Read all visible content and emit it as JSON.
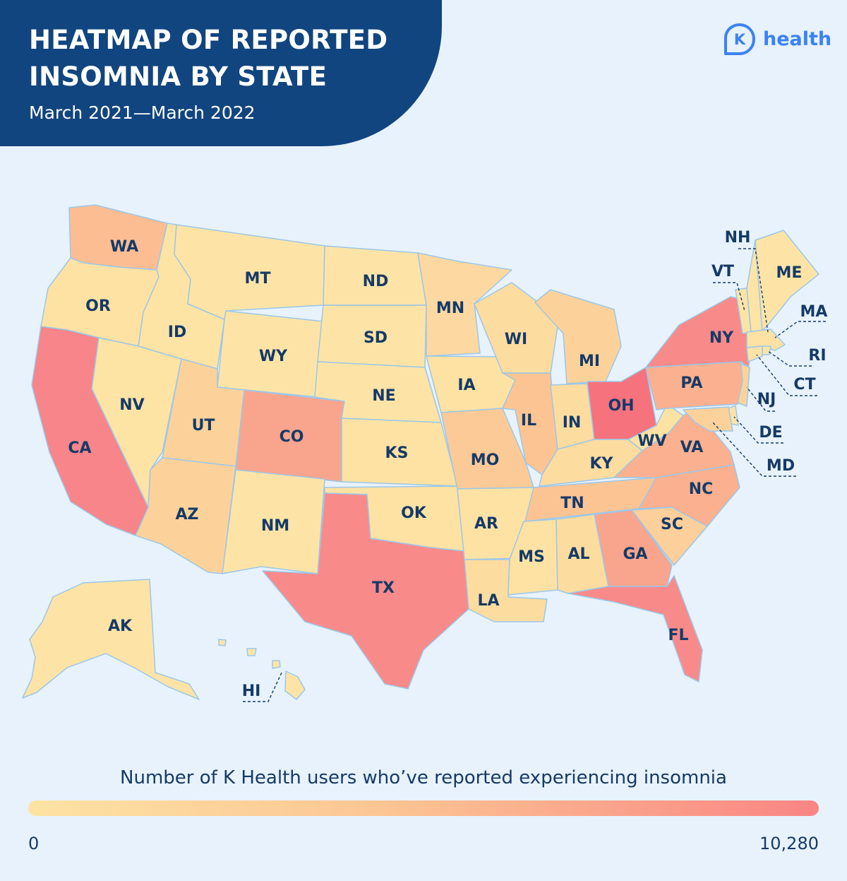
{
  "title": "HEATMAP OF REPORTED\nINSOMNIA BY STATE",
  "subtitle": "March 2021—March 2022",
  "logo": {
    "mark": "K",
    "text": "health"
  },
  "legend": {
    "title": "Number of K Health users who’ve reported experiencing insomnia",
    "min_label": "0",
    "max_label": "10,280",
    "min": 0,
    "max": 10280,
    "low_color": "#fde3a3",
    "mid_color": "#fcc593",
    "high_color": "#f98584"
  },
  "colors": {
    "header_bg": "#11457f",
    "page_bg": "#e7f2fc",
    "label": "#163a67",
    "state_border": "#9cc7e8",
    "brand": "#3b82f6"
  },
  "states": [
    {
      "abbr": "WA",
      "fill": "#fcbd93"
    },
    {
      "abbr": "OR",
      "fill": "#fde2a3"
    },
    {
      "abbr": "CA",
      "fill": "#f7858a"
    },
    {
      "abbr": "NV",
      "fill": "#fde3a4"
    },
    {
      "abbr": "ID",
      "fill": "#fde3a4"
    },
    {
      "abbr": "MT",
      "fill": "#fde4a6"
    },
    {
      "abbr": "WY",
      "fill": "#fde4a6"
    },
    {
      "abbr": "UT",
      "fill": "#fdd29a"
    },
    {
      "abbr": "AZ",
      "fill": "#fdd29a"
    },
    {
      "abbr": "CO",
      "fill": "#f9a48d"
    },
    {
      "abbr": "NM",
      "fill": "#fde4a6"
    },
    {
      "abbr": "ND",
      "fill": "#fde4a6"
    },
    {
      "abbr": "SD",
      "fill": "#fde4a6"
    },
    {
      "abbr": "NE",
      "fill": "#fde4a6"
    },
    {
      "abbr": "KS",
      "fill": "#fde2a3"
    },
    {
      "abbr": "OK",
      "fill": "#fde2a3"
    },
    {
      "abbr": "TX",
      "fill": "#f98a8a"
    },
    {
      "abbr": "MN",
      "fill": "#fdd9a1"
    },
    {
      "abbr": "IA",
      "fill": "#fde2a3"
    },
    {
      "abbr": "MO",
      "fill": "#fcca97"
    },
    {
      "abbr": "AR",
      "fill": "#fde2a3"
    },
    {
      "abbr": "LA",
      "fill": "#fddc9f"
    },
    {
      "abbr": "WI",
      "fill": "#fddc9f"
    },
    {
      "abbr": "IL",
      "fill": "#fcc493"
    },
    {
      "abbr": "MI",
      "fill": "#fdd29a"
    },
    {
      "abbr": "IN",
      "fill": "#fddc9f"
    },
    {
      "abbr": "OH",
      "fill": "#f6727c"
    },
    {
      "abbr": "KY",
      "fill": "#fddc9f"
    },
    {
      "abbr": "TN",
      "fill": "#fcc493"
    },
    {
      "abbr": "MS",
      "fill": "#fde2a3"
    },
    {
      "abbr": "AL",
      "fill": "#fddc9f"
    },
    {
      "abbr": "GA",
      "fill": "#f9a48d"
    },
    {
      "abbr": "FL",
      "fill": "#f98a8a"
    },
    {
      "abbr": "SC",
      "fill": "#fdcf9a"
    },
    {
      "abbr": "NC",
      "fill": "#fbb08f"
    },
    {
      "abbr": "VA",
      "fill": "#fbb08f"
    },
    {
      "abbr": "WV",
      "fill": "#fde2a3"
    },
    {
      "abbr": "PA",
      "fill": "#fbb08f"
    },
    {
      "abbr": "NY",
      "fill": "#f98a8a"
    },
    {
      "abbr": "VT",
      "fill": "#fde4a6"
    },
    {
      "abbr": "NH",
      "fill": "#fde4a6"
    },
    {
      "abbr": "ME",
      "fill": "#fde4a6"
    },
    {
      "abbr": "MA",
      "fill": "#fde2a3"
    },
    {
      "abbr": "RI",
      "fill": "#fde4a6"
    },
    {
      "abbr": "CT",
      "fill": "#fde4a6"
    },
    {
      "abbr": "NJ",
      "fill": "#fdd29a"
    },
    {
      "abbr": "DE",
      "fill": "#fde4a6"
    },
    {
      "abbr": "MD",
      "fill": "#fdd29a"
    },
    {
      "abbr": "AK",
      "fill": "#fde4a6"
    },
    {
      "abbr": "HI",
      "fill": "#fde4a6"
    }
  ]
}
